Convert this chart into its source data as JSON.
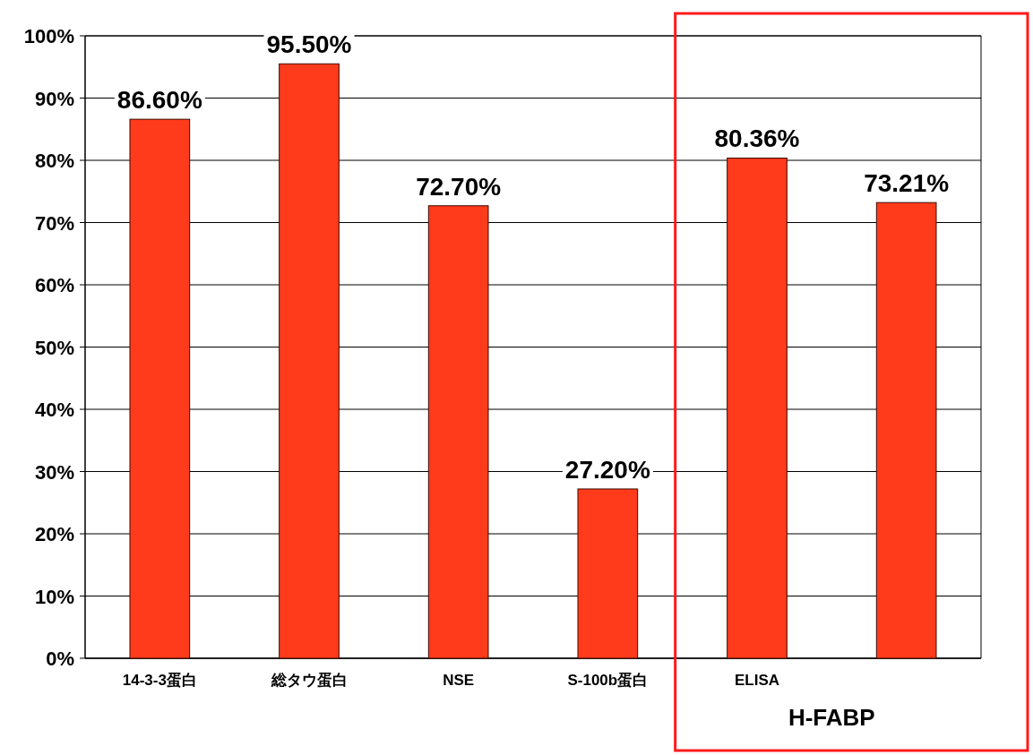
{
  "chart_data": {
    "type": "bar",
    "categories": [
      "14-3-3蛋白",
      "総タウ蛋白",
      "NSE",
      "S-100b蛋白",
      "ELISA",
      null
    ],
    "values": [
      86.6,
      95.5,
      72.7,
      27.2,
      80.36,
      73.21
    ],
    "value_labels": [
      "86.60%",
      "95.50%",
      "72.70%",
      "27.20%",
      "80.36%",
      "73.21%"
    ],
    "color": "#ff3b1c",
    "ylim": [
      0,
      100
    ],
    "yticks": [
      {
        "value": 0,
        "label": "0%"
      },
      {
        "value": 10,
        "label": "10%"
      },
      {
        "value": 20,
        "label": "20%"
      },
      {
        "value": 30,
        "label": "30%"
      },
      {
        "value": 40,
        "label": "40%"
      },
      {
        "value": 50,
        "label": "50%"
      },
      {
        "value": 60,
        "label": "60%"
      },
      {
        "value": 70,
        "label": "70%"
      },
      {
        "value": 80,
        "label": "80%"
      },
      {
        "value": 90,
        "label": "90%"
      },
      {
        "value": 100,
        "label": "100%"
      }
    ],
    "grid": "y",
    "annotations": [
      "H-FABP"
    ]
  }
}
